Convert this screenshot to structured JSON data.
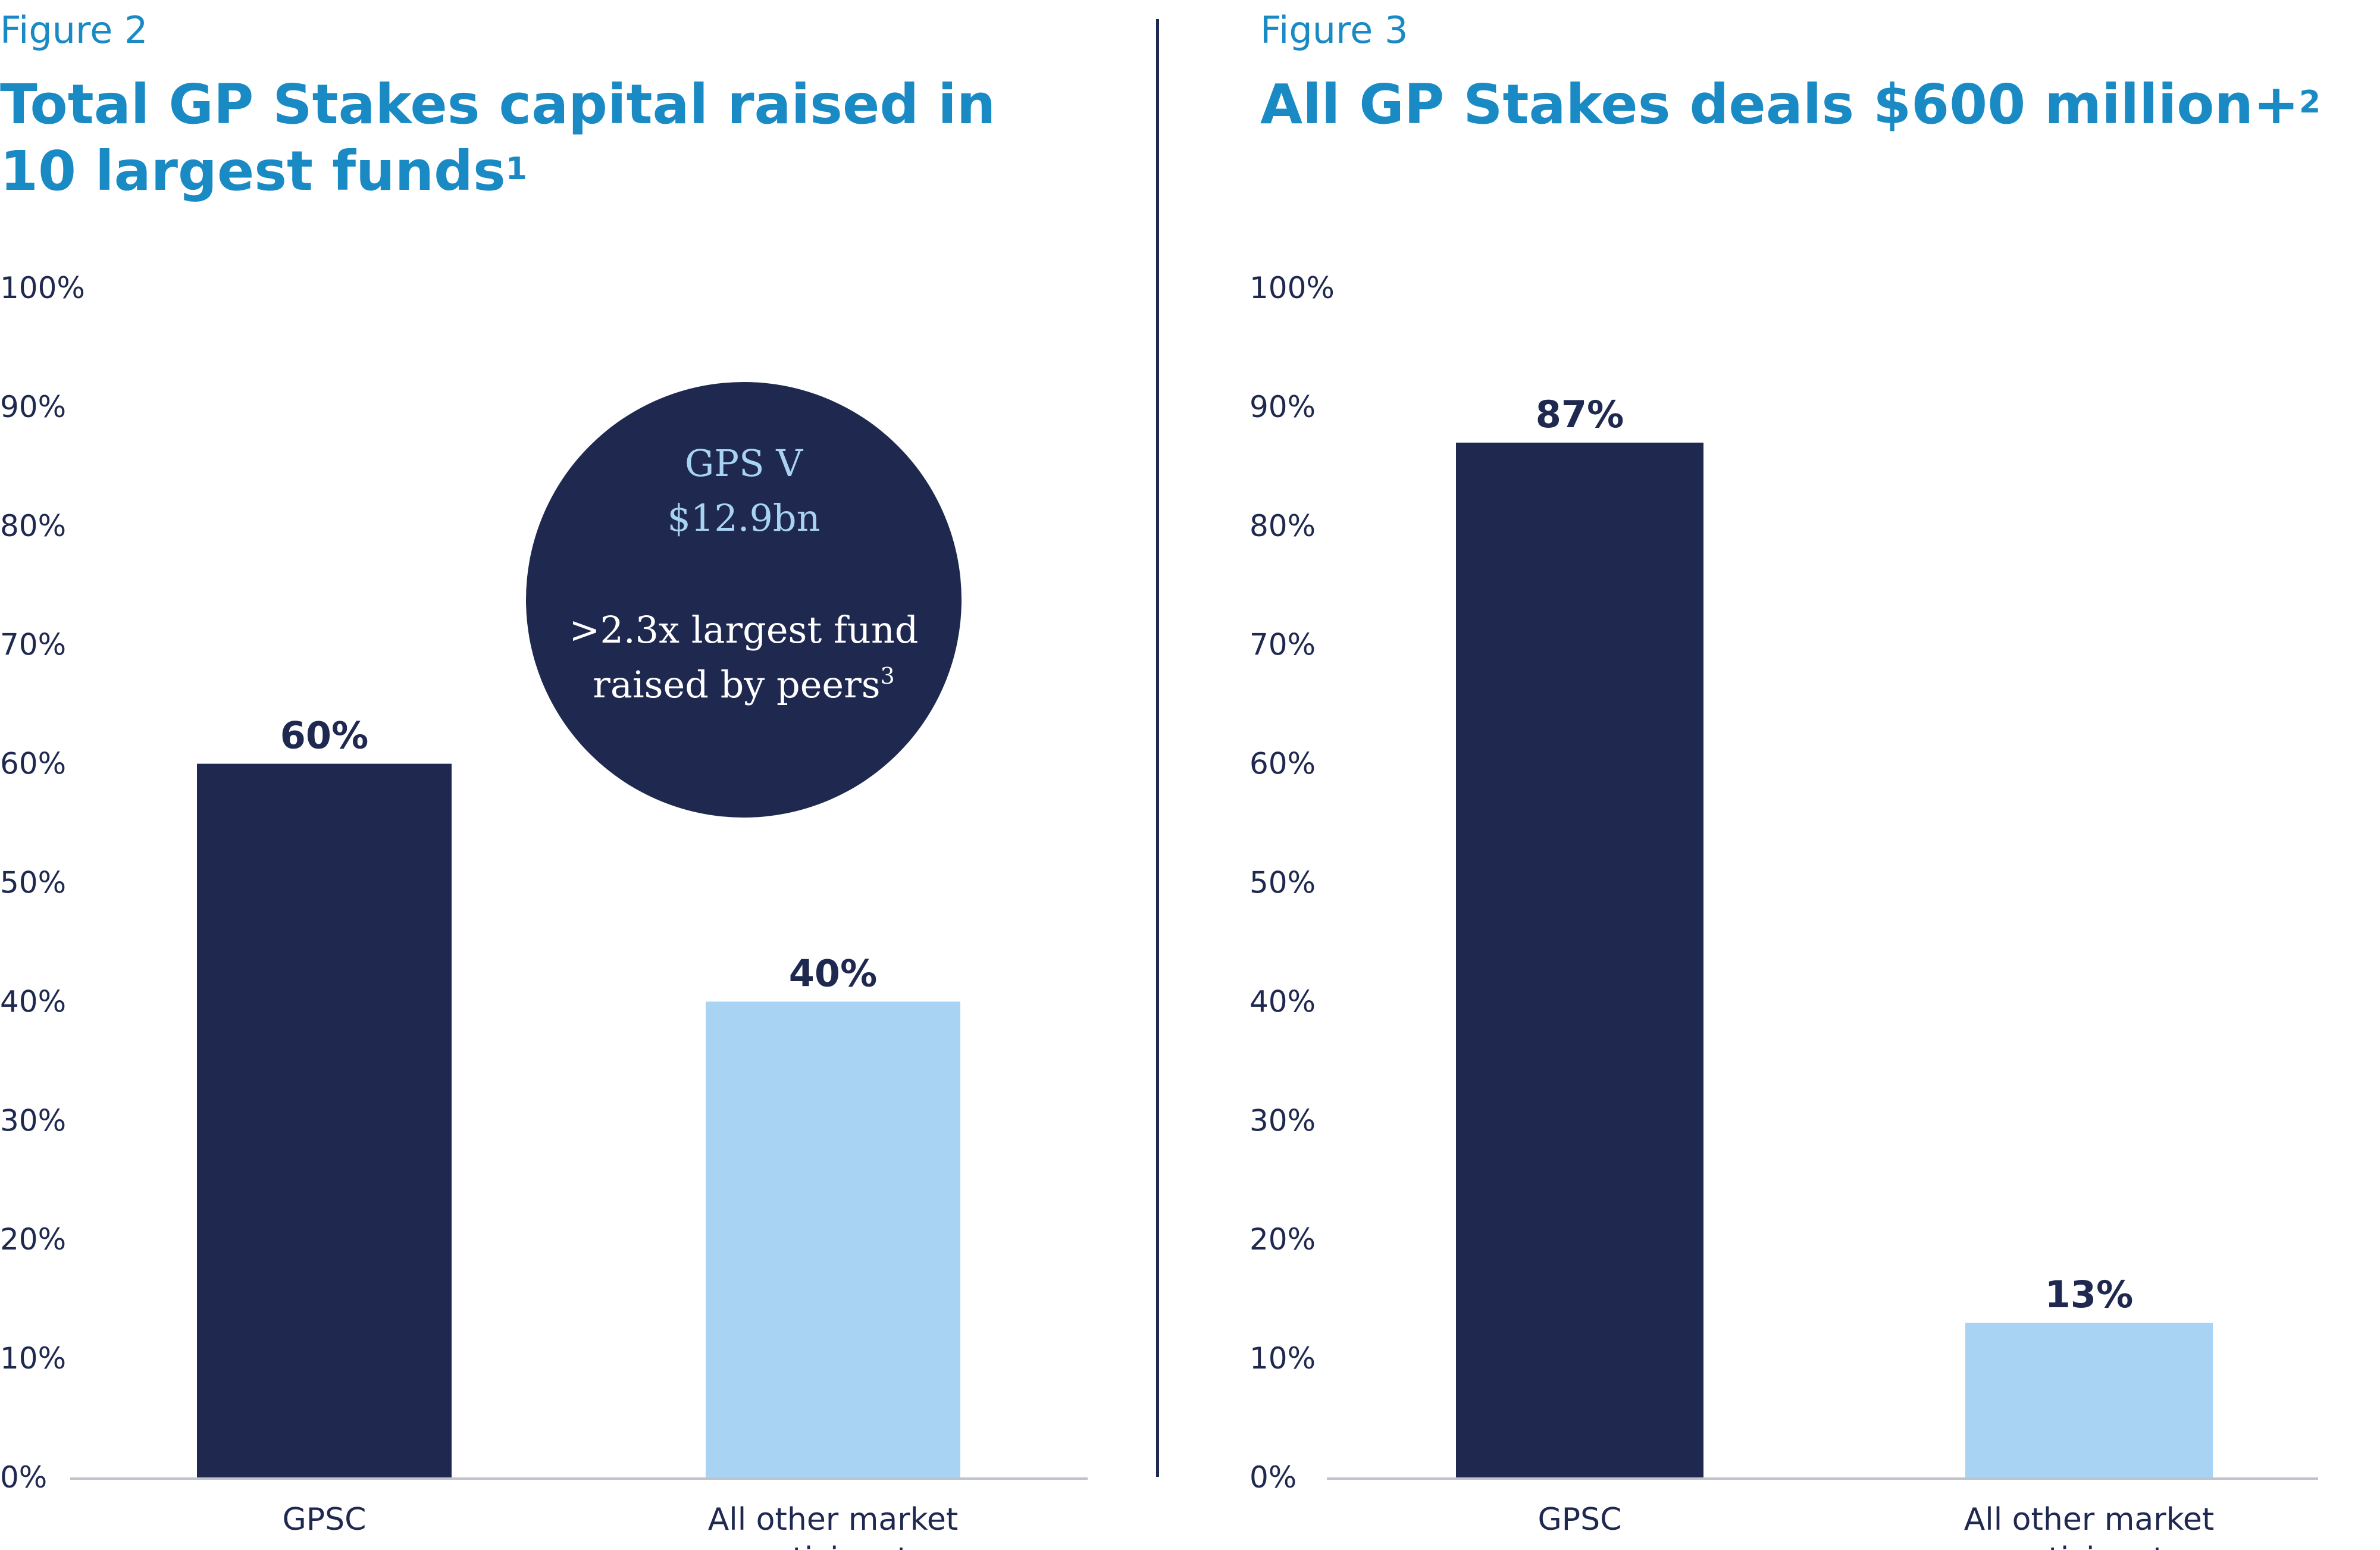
{
  "figures": [
    {
      "label": "Figure 2",
      "title_line1": "Total GP Stakes capital raised in",
      "title_line2": "10 largest funds",
      "title_footnote": "1"
    },
    {
      "label": "Figure 3",
      "title_line1": "All GP Stakes deals $600 million+",
      "title_footnote": "2"
    }
  ],
  "callout": {
    "line1": "GPS V",
    "line2": "$12.9bn",
    "line3": ">2.3x largest fund",
    "line4": "raised by peers",
    "footnote": "3"
  },
  "colors": {
    "accent_blue": "#1a8ac4",
    "navy": "#1f2950",
    "light_blue": "#a9d3f3"
  },
  "chart_data": [
    {
      "type": "bar",
      "title": "Total GP Stakes capital raised in 10 largest funds",
      "categories": [
        [
          "GPSC"
        ],
        [
          "All other market",
          "participants"
        ]
      ],
      "values": [
        60,
        40
      ],
      "data_labels": [
        "60%",
        "40%"
      ],
      "bar_colors": [
        "#1f2950",
        "#a9d3f3"
      ],
      "ylim": [
        0,
        100
      ],
      "yticks": [
        0,
        10,
        20,
        30,
        40,
        50,
        60,
        70,
        80,
        90,
        100
      ],
      "ytick_labels": [
        "0%",
        "10%",
        "20%",
        "30%",
        "40%",
        "50%",
        "60%",
        "70%",
        "80%",
        "90%",
        "100%"
      ],
      "grid": false
    },
    {
      "type": "bar",
      "title": "All GP Stakes deals $600 million+",
      "categories": [
        [
          "GPSC"
        ],
        [
          "All other market",
          "participants"
        ]
      ],
      "values": [
        87,
        13
      ],
      "data_labels": [
        "87%",
        "13%"
      ],
      "bar_colors": [
        "#1f2950",
        "#a9d3f3"
      ],
      "ylim": [
        0,
        100
      ],
      "yticks": [
        0,
        10,
        20,
        30,
        40,
        50,
        60,
        70,
        80,
        90,
        100
      ],
      "ytick_labels": [
        "0%",
        "10%",
        "20%",
        "30%",
        "40%",
        "50%",
        "60%",
        "70%",
        "80%",
        "90%",
        "100%"
      ],
      "grid": false
    }
  ]
}
